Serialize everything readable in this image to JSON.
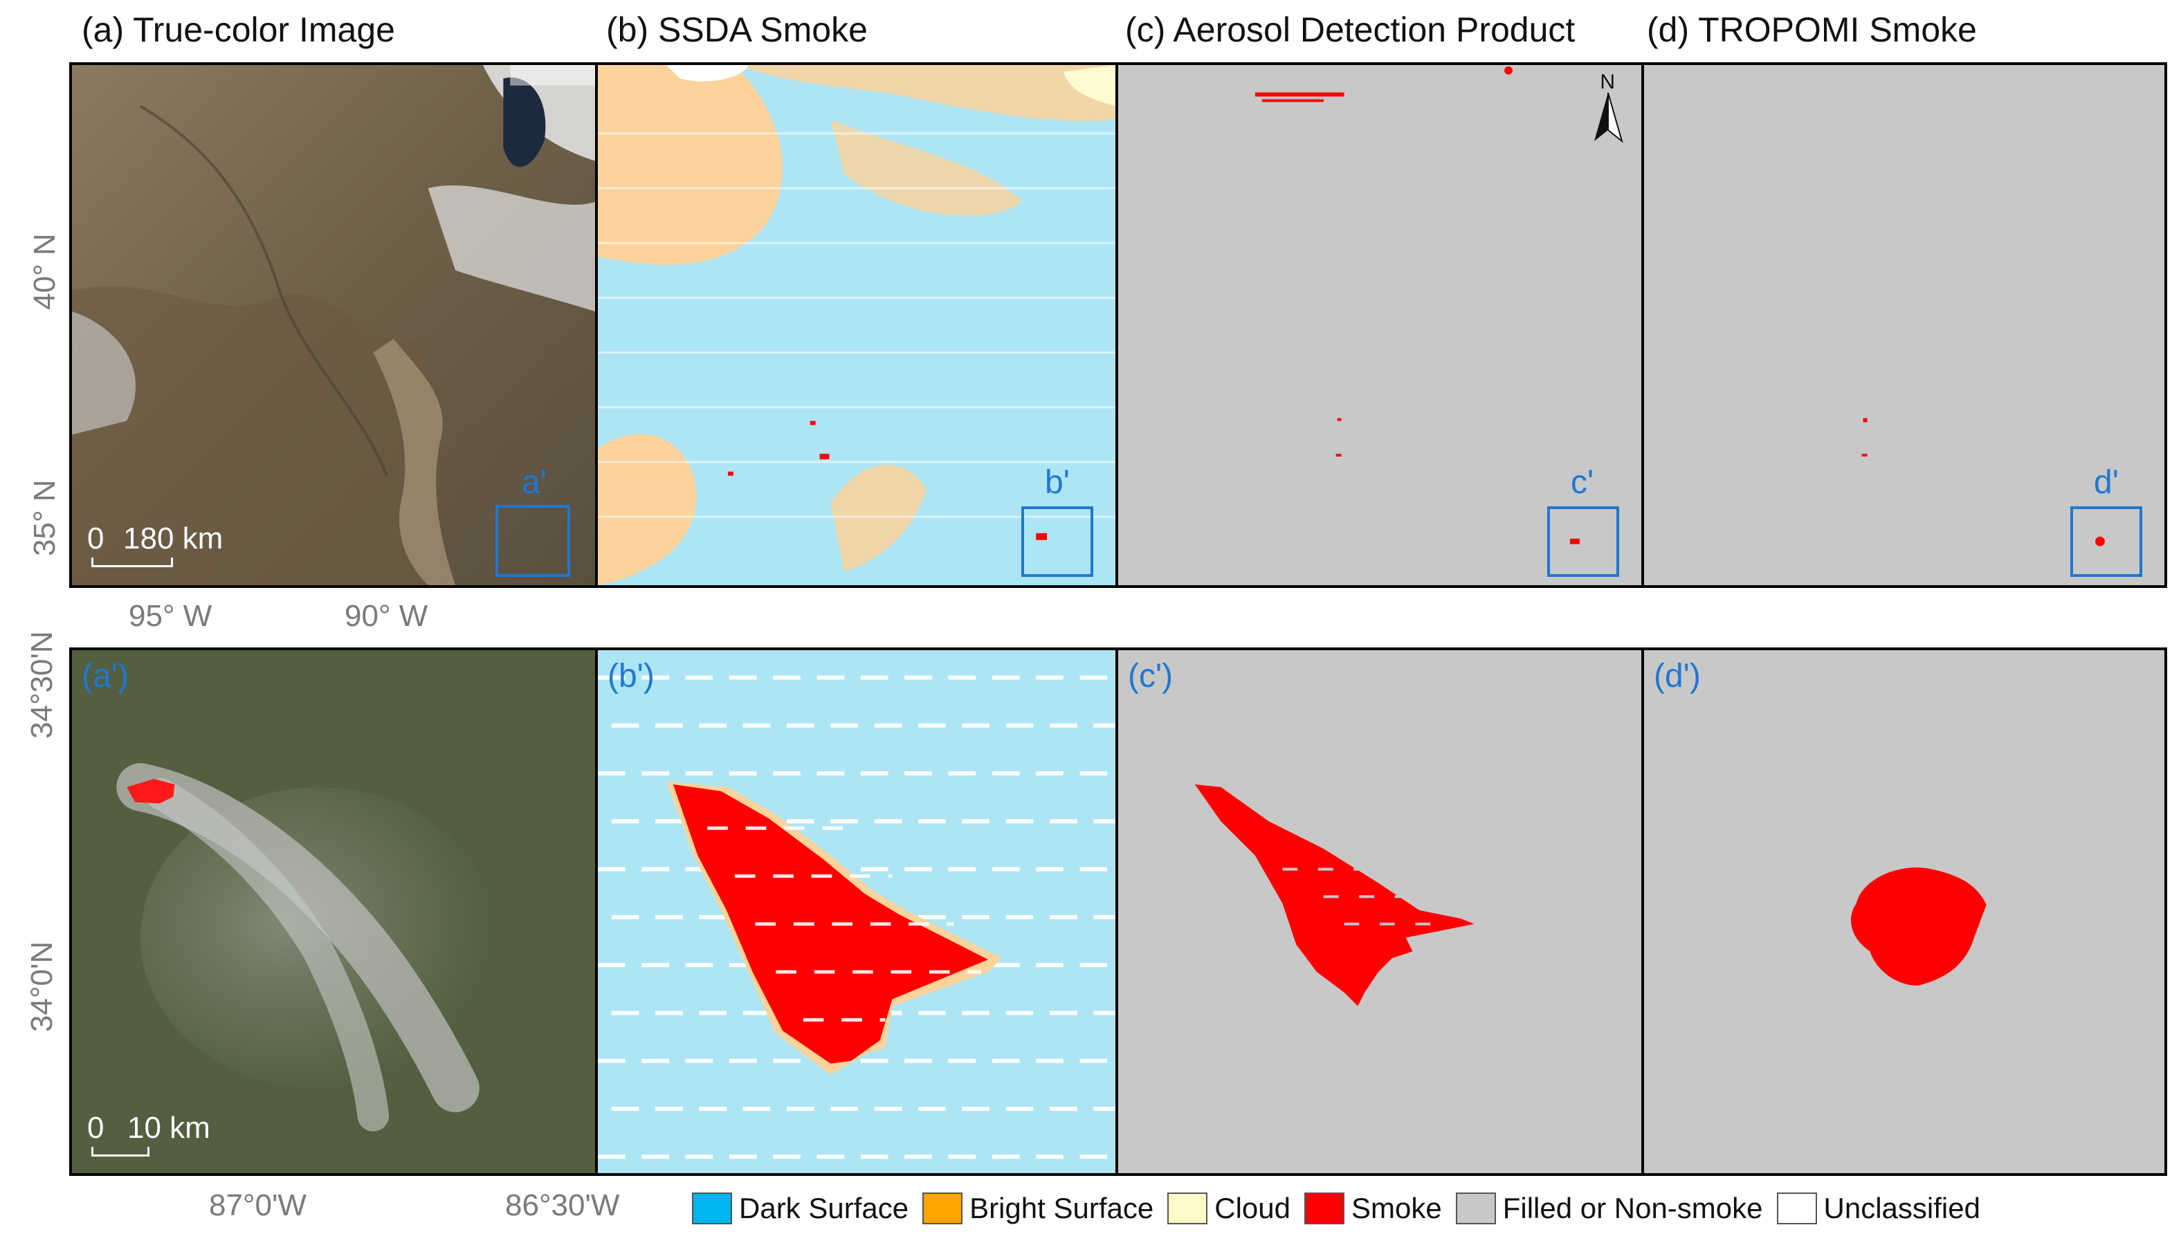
{
  "titles": {
    "a": "(a) True-color Image",
    "b": "(b) SSDA Smoke",
    "c": "(c) Aerosol Detection Product",
    "d": "(d) TROPOMI Smoke"
  },
  "inset_tags": {
    "a": "(a')",
    "b": "(b')",
    "c": "(c')",
    "d": "(d')"
  },
  "roi_labels": {
    "a": "a'",
    "b": "b'",
    "c": "c'",
    "d": "d'"
  },
  "north_label": "N",
  "top_axes": {
    "y_labels": [
      "40° N",
      "35° N"
    ],
    "x_labels": [
      "95° W",
      "90° W"
    ],
    "scale_zero": "0",
    "scale_value": "180 km"
  },
  "bottom_axes": {
    "y_labels": [
      "34°30'N",
      "34°0'N"
    ],
    "x_labels": [
      "87°0'W",
      "86°30'W"
    ],
    "scale_zero": "0",
    "scale_value": "10 km"
  },
  "legend": [
    {
      "label": "Dark Surface",
      "color": "#00b4ef"
    },
    {
      "label": "Bright Surface",
      "color": "#ffa500"
    },
    {
      "label": "Cloud",
      "color": "#fffac8"
    },
    {
      "label": "Smoke",
      "color": "#ff0000"
    },
    {
      "label": "Filled or Non-smoke",
      "color": "#c8c8c8"
    },
    {
      "label": "Unclassified",
      "color": "#ffffff"
    }
  ],
  "colors": {
    "dark_surface": "#aee5f5",
    "bright_surface": "#fcd39a",
    "cloud": "#fffbd2",
    "smoke": "#ff0000",
    "non_smoke": "#c8c8c8",
    "roi": "#1f78d1"
  }
}
